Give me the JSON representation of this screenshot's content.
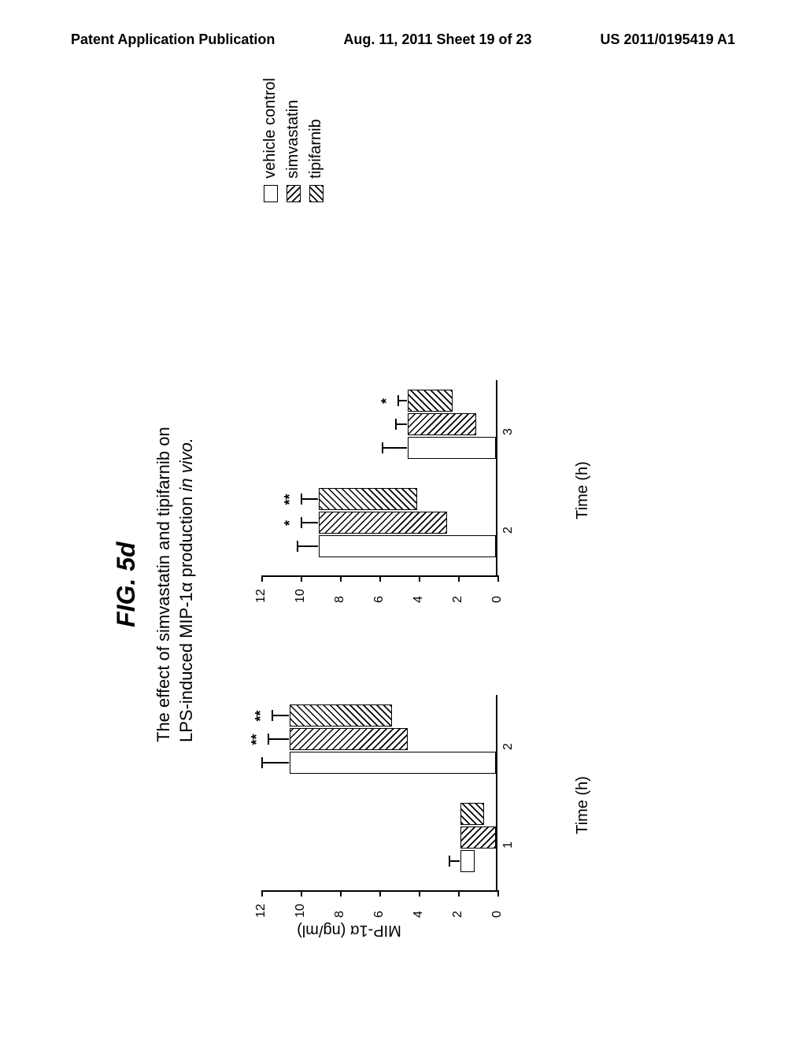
{
  "header": {
    "left": "Patent Application Publication",
    "center": "Aug. 11, 2011  Sheet 19 of 23",
    "right": "US 2011/0195419 A1"
  },
  "figure": {
    "label": "FIG. 5d",
    "subtitle_line1": "The effect of simvastatin and tipifarnib on",
    "subtitle_line2": "LPS-induced MIP-1α production in vivo.",
    "subtitle_italic_part": "in vivo."
  },
  "chart_common": {
    "y_label": "MIP-1α (ng/ml)",
    "x_label": "Time (h)",
    "y_max": 12,
    "y_ticks": [
      0,
      2,
      4,
      6,
      8,
      10,
      12
    ],
    "bar_colors": {
      "vehicle": "#ffffff",
      "simvastatin_pattern": "hatch45",
      "tipifarnib_pattern": "hatchN45"
    }
  },
  "chart1": {
    "x_ticks": [
      "1",
      "2"
    ],
    "groups": [
      {
        "x": "1",
        "bars": [
          {
            "series": "vehicle",
            "value": 0.7,
            "error": 0.5,
            "sig": ""
          },
          {
            "series": "simvastatin",
            "value": 1.8,
            "error": 0,
            "sig": ""
          },
          {
            "series": "tipifarnib",
            "value": 1.2,
            "error": 0,
            "sig": ""
          }
        ]
      },
      {
        "x": "2",
        "bars": [
          {
            "series": "vehicle",
            "value": 10.5,
            "error": 1.3,
            "sig": ""
          },
          {
            "series": "simvastatin",
            "value": 6.0,
            "error": 1.0,
            "sig": "**"
          },
          {
            "series": "tipifarnib",
            "value": 5.2,
            "error": 0.8,
            "sig": "**"
          }
        ]
      }
    ]
  },
  "chart2": {
    "x_ticks": [
      "2",
      "3"
    ],
    "groups": [
      {
        "x": "2",
        "bars": [
          {
            "series": "vehicle",
            "value": 9.0,
            "error": 1.0,
            "sig": ""
          },
          {
            "series": "simvastatin",
            "value": 6.5,
            "error": 0.8,
            "sig": "*"
          },
          {
            "series": "tipifarnib",
            "value": 5.0,
            "error": 0.8,
            "sig": "**"
          }
        ]
      },
      {
        "x": "3",
        "bars": [
          {
            "series": "vehicle",
            "value": 4.5,
            "error": 1.2,
            "sig": ""
          },
          {
            "series": "simvastatin",
            "value": 3.5,
            "error": 0.5,
            "sig": ""
          },
          {
            "series": "tipifarnib",
            "value": 2.3,
            "error": 0.4,
            "sig": "*"
          }
        ]
      }
    ]
  },
  "legend": {
    "items": [
      {
        "swatch": "open",
        "label": "vehicle control"
      },
      {
        "swatch": "hatch45",
        "label": "simvastatin"
      },
      {
        "swatch": "hatchN45",
        "label": "tipifarnib"
      }
    ]
  }
}
